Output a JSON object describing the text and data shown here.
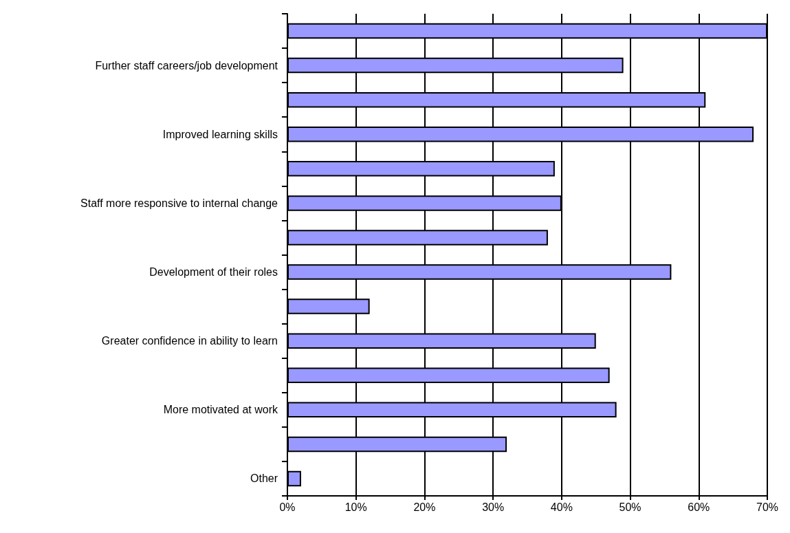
{
  "chart_data": {
    "type": "bar",
    "orientation": "horizontal",
    "categories": [
      null,
      "Further staff careers/job development",
      null,
      "Improved learning skills",
      null,
      "Staff more responsive to internal change",
      null,
      "Development of their roles",
      null,
      "Greater confidence in ability to learn",
      null,
      "More motivated at work",
      null,
      "Other"
    ],
    "values": [
      70,
      49,
      61,
      68,
      39,
      40,
      38,
      56,
      12,
      45,
      47,
      48,
      32,
      2
    ],
    "color": "#9999ff",
    "xlim": [
      0,
      70
    ],
    "xticks": [
      {
        "value": 0,
        "label": "0%"
      },
      {
        "value": 10,
        "label": "10%"
      },
      {
        "value": 20,
        "label": "20%"
      },
      {
        "value": 30,
        "label": "30%"
      },
      {
        "value": 40,
        "label": "40%"
      },
      {
        "value": 50,
        "label": "50%"
      },
      {
        "value": 60,
        "label": "60%"
      },
      {
        "value": 70,
        "label": "70%"
      }
    ],
    "grid": "x"
  }
}
